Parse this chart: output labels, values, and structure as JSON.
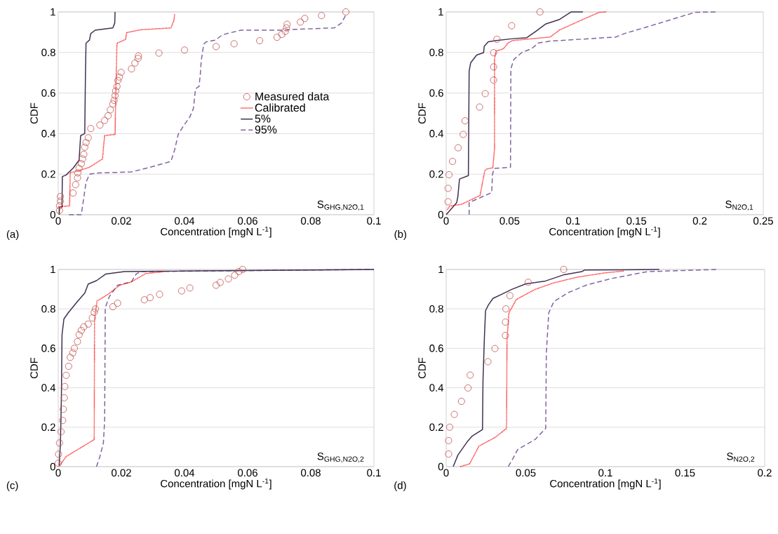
{
  "chart_data": [
    {
      "type": "line",
      "xlabel": "Concentration [mgN L$^{-1}$]",
      "ylabel": "CDF",
      "annotations": [
        "(a)",
        "S$_{GHG,N2O,1}$"
      ],
      "xlim": [
        0,
        0.1
      ],
      "ylim": [
        0,
        1
      ],
      "xticks": [
        0,
        0.02,
        0.04,
        0.06,
        0.08,
        0.1
      ],
      "yticks": [
        0,
        0.2,
        0.4,
        0.6,
        0.8,
        1
      ],
      "grid": "y",
      "legend": "right",
      "series": [
        {
          "name": "Measured data",
          "type": "scatter",
          "color": "#c0504d",
          "marker": "circle",
          "x": [
            0.0004,
            0.0004,
            0.0007,
            0.0007,
            0.0047,
            0.0055,
            0.0061,
            0.0062,
            0.0066,
            0.0073,
            0.0077,
            0.0081,
            0.0084,
            0.0088,
            0.0095,
            0.0103,
            0.0132,
            0.0147,
            0.0158,
            0.0165,
            0.0173,
            0.0177,
            0.018,
            0.0182,
            0.0186,
            0.0189,
            0.0194,
            0.0199,
            0.0232,
            0.0243,
            0.0253,
            0.0254,
            0.0319,
            0.04,
            0.05,
            0.0557,
            0.0638,
            0.0693,
            0.0708,
            0.0719,
            0.0723,
            0.0725,
            0.0767,
            0.0781,
            0.0834,
            0.0911
          ],
          "values": [
            0.021,
            0.044,
            0.067,
            0.09,
            0.107,
            0.148,
            0.182,
            0.206,
            0.229,
            0.252,
            0.275,
            0.298,
            0.333,
            0.356,
            0.379,
            0.425,
            0.442,
            0.465,
            0.488,
            0.517,
            0.546,
            0.564,
            0.587,
            0.61,
            0.633,
            0.662,
            0.679,
            0.702,
            0.719,
            0.748,
            0.771,
            0.783,
            0.797,
            0.812,
            0.829,
            0.843,
            0.858,
            0.875,
            0.889,
            0.904,
            0.921,
            0.939,
            0.95,
            0.968,
            0.982,
            1
          ]
        },
        {
          "name": "Calibrated",
          "type": "line",
          "color": "#ff0000",
          "line_style": "dotted",
          "x": [
            0,
            0.0036,
            0.0038,
            0.0051,
            0.0099,
            0.014,
            0.0147,
            0.018,
            0.0182,
            0.0186,
            0.0213,
            0.0217,
            0.0261,
            0.0357,
            0.0366,
            0.0369
          ],
          "values": [
            0.038,
            0.044,
            0.208,
            0.211,
            0.234,
            0.275,
            0.39,
            0.396,
            0.575,
            0.846,
            0.864,
            0.898,
            0.912,
            0.921,
            0.956,
            0.991
          ]
        },
        {
          "name": "5%",
          "type": "line",
          "color": "#403152",
          "line_style": "solid",
          "x": [
            0.0003,
            0.0004,
            0.0012,
            0.0013,
            0.0025,
            0.0047,
            0.0066,
            0.0071,
            0.0084,
            0.0086,
            0.0088,
            0.0099,
            0.0103,
            0.0117,
            0.0173,
            0.0179,
            0.018
          ],
          "values": [
            0,
            0.038,
            0.038,
            0.188,
            0.196,
            0.229,
            0.269,
            0.39,
            0.4,
            0.667,
            0.846,
            0.861,
            0.893,
            0.91,
            0.921,
            0.945,
            1
          ]
        },
        {
          "name": "95%",
          "type": "line",
          "color": "#8064a2",
          "line_style": "dashed",
          "x": [
            0.0034,
            0.0073,
            0.0088,
            0.0099,
            0.0129,
            0.0232,
            0.0291,
            0.0357,
            0.0369,
            0.038,
            0.0394,
            0.0417,
            0.0428,
            0.0435,
            0.0446,
            0.045,
            0.0453,
            0.0461,
            0.0468,
            0.0498,
            0.052,
            0.0542,
            0.0579,
            0.0705,
            0.0764,
            0.0874,
            0.0897,
            0.0911
          ],
          "values": [
            0,
            0,
            0.159,
            0.2,
            0.206,
            0.211,
            0.234,
            0.263,
            0.321,
            0.396,
            0.431,
            0.483,
            0.523,
            0.621,
            0.633,
            0.691,
            0.76,
            0.841,
            0.852,
            0.861,
            0.887,
            0.896,
            0.91,
            0.91,
            0.915,
            0.921,
            0.945,
            0.985
          ]
        }
      ]
    },
    {
      "type": "line",
      "xlabel": "Concentration [mgN L$^{-1}$]",
      "ylabel": "CDF",
      "annotations": [
        "(b)",
        "S$_{N2O,1}$"
      ],
      "xlim": [
        0,
        0.25
      ],
      "ylim": [
        0,
        1
      ],
      "xticks": [
        0,
        0.05,
        0.1,
        0.15,
        0.2,
        0.25
      ],
      "yticks": [
        0,
        0.2,
        0.4,
        0.6,
        0.8,
        1
      ],
      "grid": "y",
      "series": [
        {
          "type": "scatter",
          "color": "#c0504d",
          "marker": "circle",
          "x": [
            0.0015,
            0.0015,
            0.0022,
            0.005,
            0.0094,
            0.0134,
            0.0149,
            0.0263,
            0.0308,
            0.0374,
            0.0374,
            0.0374,
            0.04,
            0.0516,
            0.0739
          ],
          "values": [
            0.064,
            0.13,
            0.197,
            0.263,
            0.33,
            0.396,
            0.463,
            0.531,
            0.597,
            0.664,
            0.729,
            0.799,
            0.865,
            0.932,
            1
          ]
        },
        {
          "type": "line",
          "color": "#ff0000",
          "line_style": "dotted",
          "x": [
            0.0009,
            0.0028,
            0.012,
            0.0267,
            0.0304,
            0.0322,
            0.0368,
            0.0381,
            0.0381,
            0.0392,
            0.0451,
            0.0488,
            0.0525,
            0.082,
            0.0894,
            0.1078,
            0.1207,
            0.1262
          ],
          "values": [
            0.025,
            0.043,
            0.051,
            0.095,
            0.216,
            0.226,
            0.231,
            0.326,
            0.766,
            0.807,
            0.818,
            0.847,
            0.859,
            0.876,
            0.911,
            0.963,
            0.998,
            1
          ]
        },
        {
          "type": "line",
          "color": "#403152",
          "line_style": "solid",
          "x": [
            0,
            0.0083,
            0.0092,
            0.0105,
            0.0175,
            0.0181,
            0.0193,
            0.024,
            0.0295,
            0.03,
            0.0332,
            0.0396,
            0.0525,
            0.0636,
            0.0709,
            0.0783,
            0.0894,
            0.0986,
            0.1078
          ],
          "values": [
            0,
            0.06,
            0.089,
            0.176,
            0.193,
            0.708,
            0.749,
            0.787,
            0.799,
            0.83,
            0.853,
            0.859,
            0.868,
            0.873,
            0.905,
            0.94,
            0.963,
            1,
            1
          ]
        },
        {
          "type": "line",
          "color": "#8064a2",
          "line_style": "dashed",
          "x": [
            0.0181,
            0.0181,
            0.0286,
            0.0359,
            0.0365,
            0.0378,
            0.0507,
            0.051,
            0.0534,
            0.0599,
            0.0672,
            0.0728,
            0.082,
            0.1336,
            0.1409,
            0.1594,
            0.1778,
            0.1962,
            0.2128
          ],
          "values": [
            0,
            0.06,
            0.089,
            0.109,
            0.199,
            0.228,
            0.234,
            0.72,
            0.766,
            0.801,
            0.818,
            0.847,
            0.856,
            0.876,
            0.894,
            0.928,
            0.963,
            0.998,
            1
          ]
        }
      ]
    },
    {
      "type": "line",
      "xlabel": "Concentration [mgN L$^{-1}$]",
      "ylabel": "CDF",
      "annotations": [
        "(c)",
        "S$_{GHG,N2O,2}$"
      ],
      "xlim": [
        0,
        0.1
      ],
      "ylim": [
        0,
        1
      ],
      "xticks": [
        0,
        0.02,
        0.04,
        0.06,
        0.08,
        0.1
      ],
      "yticks": [
        0,
        0.2,
        0.4,
        0.6,
        0.8,
        1
      ],
      "grid": "y",
      "series": [
        {
          "type": "scatter",
          "color": "#c0504d",
          "marker": "circle",
          "x": [
            0,
            0.0001,
            0.0004,
            0.0009,
            0.0014,
            0.0016,
            0.0019,
            0.0021,
            0.0025,
            0.0033,
            0.0038,
            0.0046,
            0.0051,
            0.0061,
            0.0066,
            0.0073,
            0.0081,
            0.0095,
            0.0108,
            0.0114,
            0.0118,
            0.0173,
            0.0188,
            0.0273,
            0.0291,
            0.0321,
            0.0391,
            0.0417,
            0.05,
            0.0513,
            0.0539,
            0.0559,
            0.0572,
            0.0584
          ],
          "values": [
            0.017,
            0.063,
            0.12,
            0.177,
            0.234,
            0.291,
            0.349,
            0.406,
            0.463,
            0.509,
            0.554,
            0.577,
            0.6,
            0.634,
            0.669,
            0.691,
            0.709,
            0.723,
            0.754,
            0.783,
            0.8,
            0.811,
            0.829,
            0.846,
            0.857,
            0.874,
            0.891,
            0.906,
            0.92,
            0.934,
            0.952,
            0.971,
            0.989,
            1
          ]
        },
        {
          "type": "line",
          "color": "#ff0000",
          "line_style": "dotted",
          "x": [
            0.0003,
            0.0025,
            0.0114,
            0.0115,
            0.0123,
            0.0158,
            0.0195,
            0.0232,
            0.0277,
            0.0336
          ],
          "values": [
            0.002,
            0.051,
            0.137,
            0.749,
            0.84,
            0.874,
            0.92,
            0.937,
            0.979,
            0.989
          ]
        },
        {
          "type": "line",
          "color": "#403152",
          "line_style": "solid",
          "x": [
            0.0003,
            0.0007,
            0.001,
            0.0012,
            0.0018,
            0.0033,
            0.0062,
            0.0084,
            0.0095,
            0.0121,
            0.0151,
            0.021,
            0.0321,
            0.1
          ],
          "values": [
            0.006,
            0.12,
            0.349,
            0.669,
            0.749,
            0.783,
            0.84,
            0.88,
            0.926,
            0.943,
            0.977,
            0.989,
            0.991,
            1
          ]
        },
        {
          "type": "line",
          "color": "#8064a2",
          "line_style": "dashed",
          "x": [
            0.0121,
            0.0132,
            0.0143,
            0.0147,
            0.0149,
            0.0162,
            0.0188,
            0.0232,
            0.0247,
            0.0262,
            0.1
          ],
          "values": [
            0,
            0.051,
            0.12,
            0.234,
            0.806,
            0.863,
            0.92,
            0.937,
            0.977,
            0.989,
            1
          ]
        }
      ]
    },
    {
      "type": "line",
      "xlabel": "Concentration [mgN L$^{-1}$]",
      "ylabel": "CDF",
      "annotations": [
        "(d)",
        "S$_{N2O,2}$"
      ],
      "xlim": [
        0,
        0.2
      ],
      "ylim": [
        0,
        1
      ],
      "xticks": [
        0,
        0.05,
        0.1,
        0.15,
        0.2
      ],
      "yticks": [
        0,
        0.2,
        0.4,
        0.6,
        0.8,
        1
      ],
      "grid": "y",
      "series": [
        {
          "type": "scatter",
          "color": "#c0504d",
          "marker": "circle",
          "x": [
            0.0015,
            0.0015,
            0.0022,
            0.0051,
            0.0096,
            0.0137,
            0.0151,
            0.0262,
            0.0306,
            0.0372,
            0.0372,
            0.0375,
            0.04,
            0.0515,
            0.0738
          ],
          "values": [
            0.064,
            0.132,
            0.2,
            0.265,
            0.331,
            0.399,
            0.464,
            0.532,
            0.599,
            0.665,
            0.733,
            0.8,
            0.867,
            0.935,
            1
          ]
        },
        {
          "type": "line",
          "color": "#ff0000",
          "line_style": "dotted",
          "x": [
            0.0088,
            0.0147,
            0.0206,
            0.0309,
            0.0379,
            0.0382,
            0.0394,
            0.0441,
            0.0559,
            0.0676,
            0.0824,
            0.1,
            0.1118
          ],
          "values": [
            0,
            0.014,
            0.104,
            0.149,
            0.194,
            0.645,
            0.78,
            0.848,
            0.899,
            0.932,
            0.961,
            0.983,
            0.992
          ]
        },
        {
          "type": "line",
          "color": "#403152",
          "line_style": "solid",
          "x": [
            0.0044,
            0.0074,
            0.0132,
            0.0162,
            0.0228,
            0.0231,
            0.024,
            0.0247,
            0.0265,
            0.0294,
            0.0353,
            0.0412,
            0.05,
            0.0618,
            0.0735,
            0.0853,
            0.0868,
            0.1118,
            0.1338
          ],
          "values": [
            0,
            0.059,
            0.126,
            0.154,
            0.188,
            0.431,
            0.656,
            0.791,
            0.82,
            0.853,
            0.876,
            0.899,
            0.927,
            0.94,
            0.972,
            0.989,
            0.997,
            0.998,
            1
          ]
        },
        {
          "type": "line",
          "color": "#8064a2",
          "line_style": "dashed",
          "x": [
            0.039,
            0.0412,
            0.0449,
            0.0559,
            0.0625,
            0.0629,
            0.0644,
            0.0676,
            0.0765,
            0.0882,
            0.1044,
            0.1265,
            0.1706
          ],
          "values": [
            0,
            0.03,
            0.087,
            0.138,
            0.194,
            0.577,
            0.78,
            0.837,
            0.882,
            0.921,
            0.955,
            0.989,
            1
          ]
        }
      ]
    }
  ]
}
